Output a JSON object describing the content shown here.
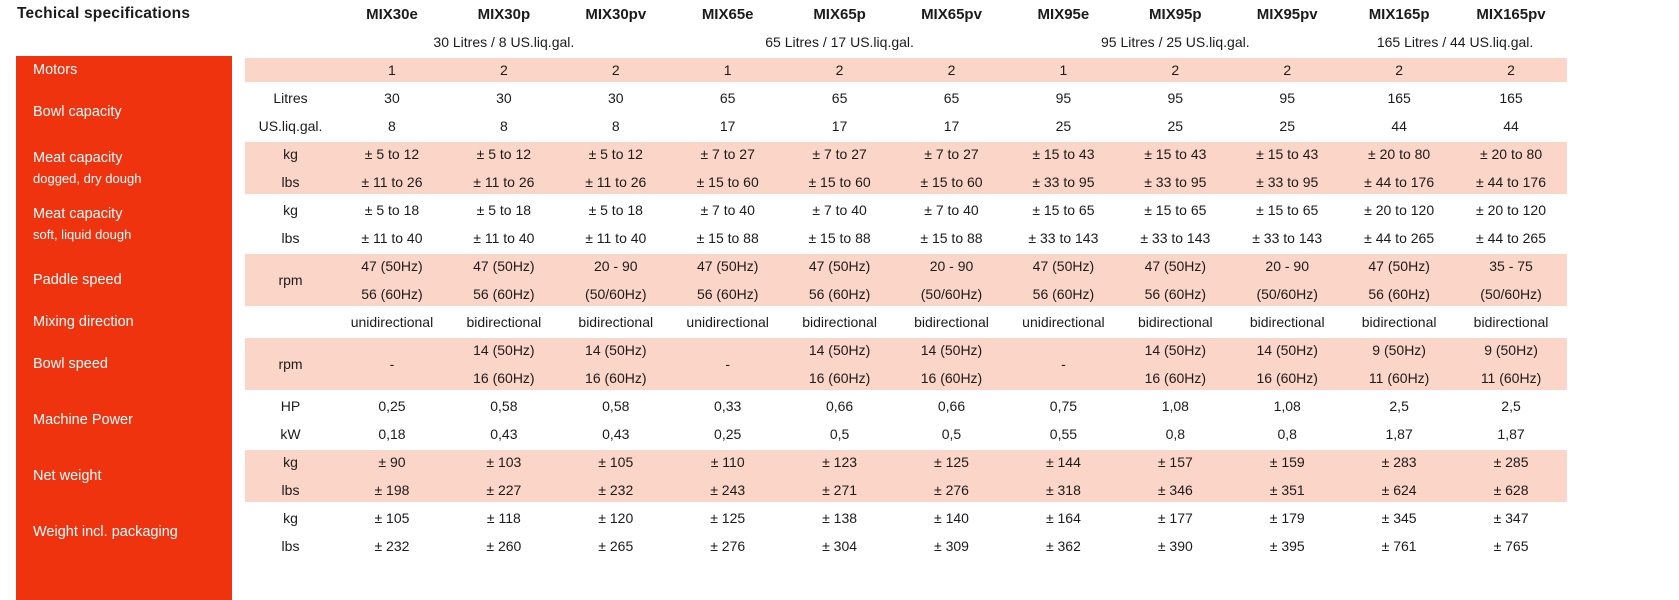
{
  "title": "Techical specifications",
  "colors": {
    "accent_red": "#F0330F",
    "band_pink": "#FBD5C7",
    "text": "#1B1B1B",
    "sidebar_text": "#FFFFFF"
  },
  "columns": [
    "MIX30e",
    "MIX30p",
    "MIX30pv",
    "MIX65e",
    "MIX65p",
    "MIX65pv",
    "MIX95e",
    "MIX95p",
    "MIX95pv",
    "MIX165p",
    "MIX165pv"
  ],
  "capacity_groups": [
    {
      "label": "30 Litres / 8 US.liq.gal.",
      "span": 3
    },
    {
      "label": "65 Litres / 17 US.liq.gal.",
      "span": 3
    },
    {
      "label": "95 Litres / 25 US.liq.gal.",
      "span": 3
    },
    {
      "label": "165 Litres / 44 US.liq.gal.",
      "span": 2
    }
  ],
  "groups": [
    {
      "label": "Motors",
      "tint": "pink",
      "kind": "rows",
      "rows": [
        {
          "unit": "",
          "values": [
            "1",
            "2",
            "2",
            "1",
            "2",
            "2",
            "1",
            "2",
            "2",
            "2",
            "2"
          ]
        }
      ]
    },
    {
      "label": "Bowl capacity",
      "tint": "white",
      "kind": "rows",
      "rows": [
        {
          "unit": "Litres",
          "values": [
            "30",
            "30",
            "30",
            "65",
            "65",
            "65",
            "95",
            "95",
            "95",
            "165",
            "165"
          ]
        },
        {
          "unit": "US.liq.gal.",
          "values": [
            "8",
            "8",
            "8",
            "17",
            "17",
            "17",
            "25",
            "25",
            "25",
            "44",
            "44"
          ]
        }
      ]
    },
    {
      "label": "Meat capacity",
      "sublabel": "dogged, dry dough",
      "tint": "pink",
      "kind": "rows",
      "rows": [
        {
          "unit": "kg",
          "values": [
            "± 5 to 12",
            "± 5 to 12",
            "± 5 to 12",
            "± 7 to 27",
            "± 7 to 27",
            "± 7 to 27",
            "± 15 to 43",
            "± 15 to 43",
            "± 15 to 43",
            "± 20 to 80",
            "± 20 to 80"
          ]
        },
        {
          "unit": "lbs",
          "values": [
            "± 11 to 26",
            "± 11 to 26",
            "± 11 to 26",
            "± 15 to 60",
            "± 15 to 60",
            "± 15 to 60",
            "± 33 to 95",
            "± 33 to 95",
            "± 33 to 95",
            "± 44 to 176",
            "± 44 to 176"
          ]
        }
      ]
    },
    {
      "label": "Meat capacity",
      "sublabel": "soft, liquid dough",
      "tint": "white",
      "kind": "rows",
      "rows": [
        {
          "unit": "kg",
          "values": [
            "± 5 to 18",
            "± 5 to 18",
            "± 5 to 18",
            "± 7 to 40",
            "± 7 to 40",
            "± 7 to 40",
            "± 15 to 65",
            "± 15 to 65",
            "± 15 to 65",
            "± 20 to 120",
            "± 20 to 120"
          ]
        },
        {
          "unit": "lbs",
          "values": [
            "± 11 to 40",
            "± 11 to 40",
            "± 11 to 40",
            "± 15 to 88",
            "± 15 to 88",
            "± 15 to 88",
            "± 33 to 143",
            "± 33 to 143",
            "± 33 to 143",
            "± 44 to 265",
            "± 44 to 265"
          ]
        }
      ]
    },
    {
      "label": "Paddle speed",
      "tint": "pink",
      "kind": "stack",
      "unit": "rpm",
      "cols": [
        [
          "47 (50Hz)",
          "56 (60Hz)"
        ],
        [
          "47 (50Hz)",
          "56 (60Hz)"
        ],
        [
          "20 - 90",
          "(50/60Hz)"
        ],
        [
          "47 (50Hz)",
          "56 (60Hz)"
        ],
        [
          "47 (50Hz)",
          "56 (60Hz)"
        ],
        [
          "20 - 90",
          "(50/60Hz)"
        ],
        [
          "47 (50Hz)",
          "56 (60Hz)"
        ],
        [
          "47 (50Hz)",
          "56 (60Hz)"
        ],
        [
          "20 - 90",
          "(50/60Hz)"
        ],
        [
          "47 (50Hz)",
          "56 (60Hz)"
        ],
        [
          "35 - 75",
          "(50/60Hz)"
        ]
      ]
    },
    {
      "label": "Mixing direction",
      "tint": "white",
      "kind": "rows",
      "rows": [
        {
          "unit": "",
          "values": [
            "unidirectional",
            "bidirectional",
            "bidirectional",
            "unidirectional",
            "bidirectional",
            "bidirectional",
            "unidirectional",
            "bidirectional",
            "bidirectional",
            "bidirectional",
            "bidirectional"
          ]
        }
      ]
    },
    {
      "label": "Bowl speed",
      "tint": "pink",
      "kind": "stack",
      "unit": "rpm",
      "cols": [
        [
          "-"
        ],
        [
          "14 (50Hz)",
          "16 (60Hz)"
        ],
        [
          "14 (50Hz)",
          "16 (60Hz)"
        ],
        [
          "-"
        ],
        [
          "14 (50Hz)",
          "16 (60Hz)"
        ],
        [
          "14 (50Hz)",
          "16 (60Hz)"
        ],
        [
          "-"
        ],
        [
          "14 (50Hz)",
          "16 (60Hz)"
        ],
        [
          "14 (50Hz)",
          "16 (60Hz)"
        ],
        [
          "9 (50Hz)",
          "11 (60Hz)"
        ],
        [
          "9 (50Hz)",
          "11 (60Hz)"
        ]
      ]
    },
    {
      "label": "Machine Power",
      "tint": "white",
      "kind": "rows",
      "rows": [
        {
          "unit": "HP",
          "values": [
            "0,25",
            "0,58",
            "0,58",
            "0,33",
            "0,66",
            "0,66",
            "0,75",
            "1,08",
            "1,08",
            "2,5",
            "2,5"
          ]
        },
        {
          "unit": "kW",
          "values": [
            "0,18",
            "0,43",
            "0,43",
            "0,25",
            "0,5",
            "0,5",
            "0,55",
            "0,8",
            "0,8",
            "1,87",
            "1,87"
          ]
        }
      ]
    },
    {
      "label": "Net weight",
      "tint": "pink",
      "kind": "rows",
      "rows": [
        {
          "unit": "kg",
          "values": [
            "± 90",
            "± 103",
            "± 105",
            "± 110",
            "± 123",
            "± 125",
            "± 144",
            "± 157",
            "± 159",
            "± 283",
            "± 285"
          ]
        },
        {
          "unit": "lbs",
          "values": [
            "± 198",
            "± 227",
            "± 232",
            "± 243",
            "± 271",
            "± 276",
            "± 318",
            "± 346",
            "± 351",
            "± 624",
            "± 628"
          ]
        }
      ]
    },
    {
      "label": "Weight incl. packaging",
      "tint": "white",
      "kind": "rows",
      "rows": [
        {
          "unit": "kg",
          "values": [
            "± 105",
            "± 118",
            "± 120",
            "± 125",
            "± 138",
            "± 140",
            "± 164",
            "± 177",
            "± 179",
            "± 345",
            "± 347"
          ]
        },
        {
          "unit": "lbs",
          "values": [
            "± 232",
            "± 260",
            "± 265",
            "± 276",
            "± 304",
            "± 309",
            "± 362",
            "± 390",
            "± 395",
            "± 761",
            "± 765"
          ]
        }
      ]
    }
  ]
}
